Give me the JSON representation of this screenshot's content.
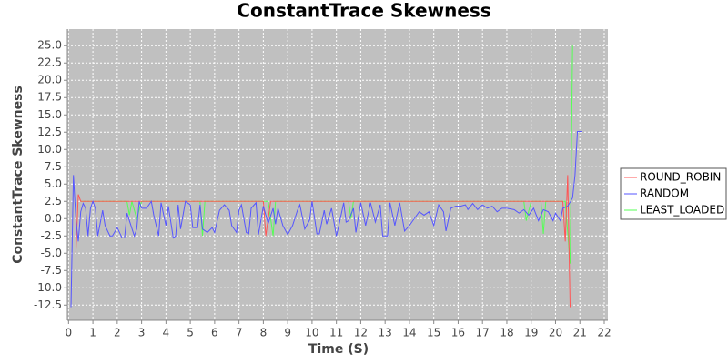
{
  "chart_data": {
    "type": "line",
    "title": "ConstantTrace Skewness",
    "x_label": "Time (S)",
    "y_label": "ConstantTrace Skewness",
    "xlim": [
      -0.05,
      22.15
    ],
    "ylim": [
      -14.7,
      27.4
    ],
    "xticks": [
      0,
      1,
      2,
      3,
      4,
      5,
      6,
      7,
      8,
      9,
      10,
      11,
      12,
      13,
      14,
      15,
      16,
      17,
      18,
      19,
      20,
      21,
      22
    ],
    "yticks": [
      {
        "value": -12.5,
        "label": "-12.5"
      },
      {
        "value": -10,
        "label": "-10.0"
      },
      -7.5,
      {
        "value": -5,
        "label": "-5.0"
      },
      -2.5,
      {
        "value": 0,
        "label": "0.0"
      },
      2.5,
      {
        "value": 5,
        "label": "5.0"
      },
      7.5,
      {
        "value": 10,
        "label": "10.0"
      },
      12.5,
      {
        "value": 15,
        "label": "15.0"
      },
      17.5,
      {
        "value": 20,
        "label": "20.0"
      },
      22.5,
      {
        "value": 25,
        "label": "25.0"
      }
    ],
    "grid": true,
    "legend": "right",
    "series": [
      {
        "name": "ROUND_ROBIN",
        "color": "#ff5555",
        "x": [
          0.3,
          0.4,
          0.5,
          8.0,
          8.1,
          8.3,
          20.3,
          20.4,
          20.5,
          20.6
        ],
        "values": [
          -5,
          3.5,
          2.5,
          2.5,
          -2.5,
          2.5,
          2.5,
          -3.3,
          6.3,
          -12.8
        ]
      },
      {
        "name": "RANDOM",
        "color": "#5555ff",
        "x": [
          0.1,
          0.2,
          0.3,
          0.4,
          0.5,
          0.6,
          0.7,
          0.8,
          0.9,
          1.0,
          1.1,
          1.2,
          1.4,
          1.5,
          1.7,
          1.8,
          2.0,
          2.2,
          2.3,
          2.4,
          2.5,
          2.7,
          2.8,
          2.9,
          3.0,
          3.2,
          3.4,
          3.5,
          3.7,
          3.8,
          4.0,
          4.1,
          4.3,
          4.4,
          4.5,
          4.6,
          4.8,
          5.0,
          5.1,
          5.3,
          5.4,
          5.5,
          5.7,
          5.9,
          6.0,
          6.2,
          6.4,
          6.6,
          6.7,
          6.9,
          7.0,
          7.1,
          7.3,
          7.4,
          7.5,
          7.7,
          7.8,
          8.0,
          8.2,
          8.4,
          8.5,
          8.6,
          8.8,
          9.0,
          9.2,
          9.4,
          9.5,
          9.7,
          9.9,
          10.0,
          10.2,
          10.3,
          10.5,
          10.6,
          10.8,
          11.0,
          11.1,
          11.3,
          11.4,
          11.5,
          11.7,
          11.8,
          12.0,
          12.2,
          12.4,
          12.6,
          12.8,
          12.9,
          13.1,
          13.2,
          13.4,
          13.6,
          13.8,
          14.0,
          14.2,
          14.4,
          14.6,
          14.8,
          15.0,
          15.2,
          15.4,
          15.5,
          15.7,
          15.9,
          16.1,
          16.3,
          16.4,
          16.6,
          16.8,
          17.0,
          17.2,
          17.4,
          17.6,
          17.8,
          18.0,
          18.3,
          18.5,
          18.7,
          18.9,
          19.1,
          19.3,
          19.5,
          19.7,
          19.9,
          20.0,
          20.2,
          20.3,
          20.5,
          20.7,
          20.8,
          20.9,
          21.1
        ],
        "values": [
          -12.8,
          6.3,
          0,
          -3.3,
          1,
          2.2,
          1.5,
          -2.5,
          1.5,
          2.5,
          1.5,
          -2.5,
          1.2,
          -1,
          -2.5,
          -2.5,
          -1.3,
          -2.8,
          -2.8,
          0.8,
          -0.3,
          -2.5,
          -1.5,
          2.5,
          1.5,
          1.5,
          2.5,
          0.5,
          -2.5,
          2.3,
          -1,
          1.8,
          -2.8,
          -2.5,
          2,
          -1.5,
          2.5,
          2,
          -1.3,
          -1.3,
          2,
          -1.5,
          -2,
          -1.3,
          -2,
          1.2,
          2,
          1.2,
          -1,
          -2,
          1.2,
          2,
          -2,
          -2.2,
          1.5,
          2.3,
          -2.3,
          1.8,
          -0.7,
          1.5,
          -0.8,
          1.5,
          -1,
          -2.3,
          -1,
          1.2,
          2,
          -1.5,
          -0.2,
          2.5,
          -2.2,
          -2.2,
          1.2,
          -0.8,
          1.5,
          -2.5,
          -1,
          2.3,
          -0.5,
          -0.3,
          1.5,
          -2,
          2.3,
          -1,
          2.3,
          -0.5,
          2,
          -2.5,
          -2.5,
          2.3,
          -1,
          2.3,
          -1.8,
          -1,
          0,
          1,
          0.5,
          1,
          -1,
          2,
          1,
          -1.8,
          1.5,
          1.8,
          1.8,
          2,
          1.3,
          2.2,
          1.3,
          2,
          1.5,
          1.8,
          1,
          1.5,
          1.5,
          1.3,
          0.8,
          1.3,
          0.5,
          1.5,
          -0.3,
          1.3,
          1,
          -0.3,
          0.8,
          -0.3,
          1.5,
          1.8,
          3,
          6.3,
          12.6,
          12.6
        ]
      },
      {
        "name": "LEAST_LOADED",
        "color": "#55ff55",
        "x": [
          0.5,
          2.4,
          2.5,
          2.6,
          2.8,
          3.0,
          5.4,
          5.5,
          5.6,
          8.2,
          8.4,
          8.5,
          11.5,
          11.6,
          11.7,
          18.7,
          18.8,
          19.0,
          19.4,
          19.5,
          19.6,
          20.4,
          20.6,
          20.7
        ],
        "values": [
          2.5,
          2.5,
          0.5,
          2.5,
          0,
          2.5,
          2.5,
          -2.5,
          2.5,
          2.5,
          -2.5,
          2.5,
          2.5,
          0,
          2.5,
          2.5,
          -0.3,
          2.5,
          2.5,
          -2.2,
          2.5,
          2.5,
          -6.5,
          25
        ]
      }
    ]
  }
}
